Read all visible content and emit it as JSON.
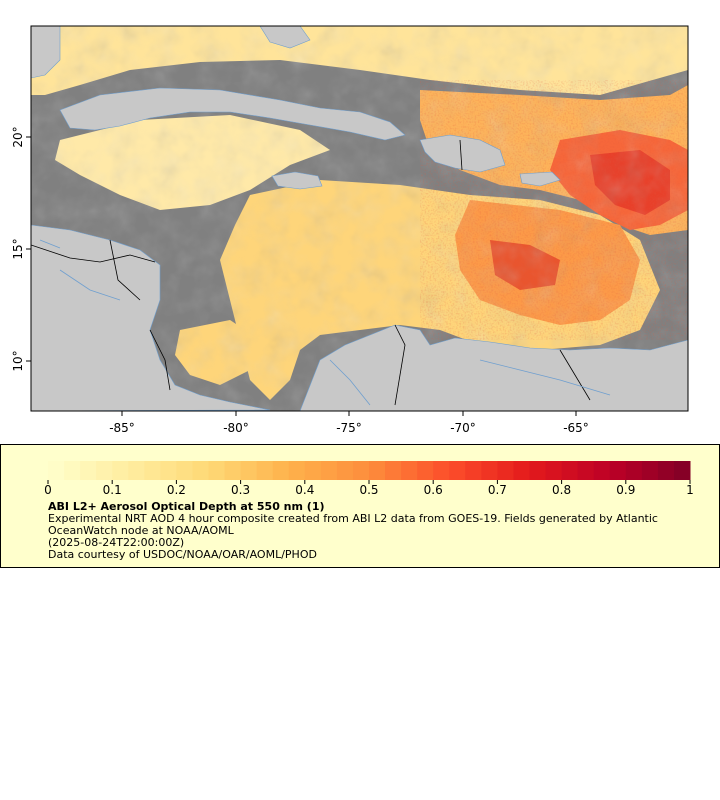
{
  "map": {
    "lon_ticks": [
      "-85°",
      "-80°",
      "-75°",
      "-70°",
      "-65°"
    ],
    "lat_ticks": [
      "20°",
      "15°",
      "10°"
    ],
    "colors": {
      "ocean_nodata": "#808080",
      "land": "#c8c8c8",
      "rivers": "#6f9fcf",
      "borders": "#000000"
    }
  },
  "legend": {
    "ticks": [
      "0",
      "0.1",
      "0.2",
      "0.3",
      "0.4",
      "0.5",
      "0.6",
      "0.7",
      "0.8",
      "0.9",
      "1"
    ],
    "range": [
      0,
      1
    ],
    "colormap": [
      "#ffffcc",
      "#ffeda0",
      "#fed976",
      "#feb24c",
      "#fd8d3c",
      "#fc4e2a",
      "#e31a1c",
      "#bd0026",
      "#800026"
    ],
    "title": "ABI L2+ Aerosol Optical Depth at 550 nm (1)",
    "description": "Experimental NRT AOD 4 hour composite created from ABI L2 data from GOES-19. Fields generated by Atlantic OceanWatch node at NOAA/AOML",
    "timestamp": "(2025-08-24T22:00:00Z)",
    "credit": "Data courtesy of USDOC/NOAA/OAR/AOML/PHOD"
  }
}
